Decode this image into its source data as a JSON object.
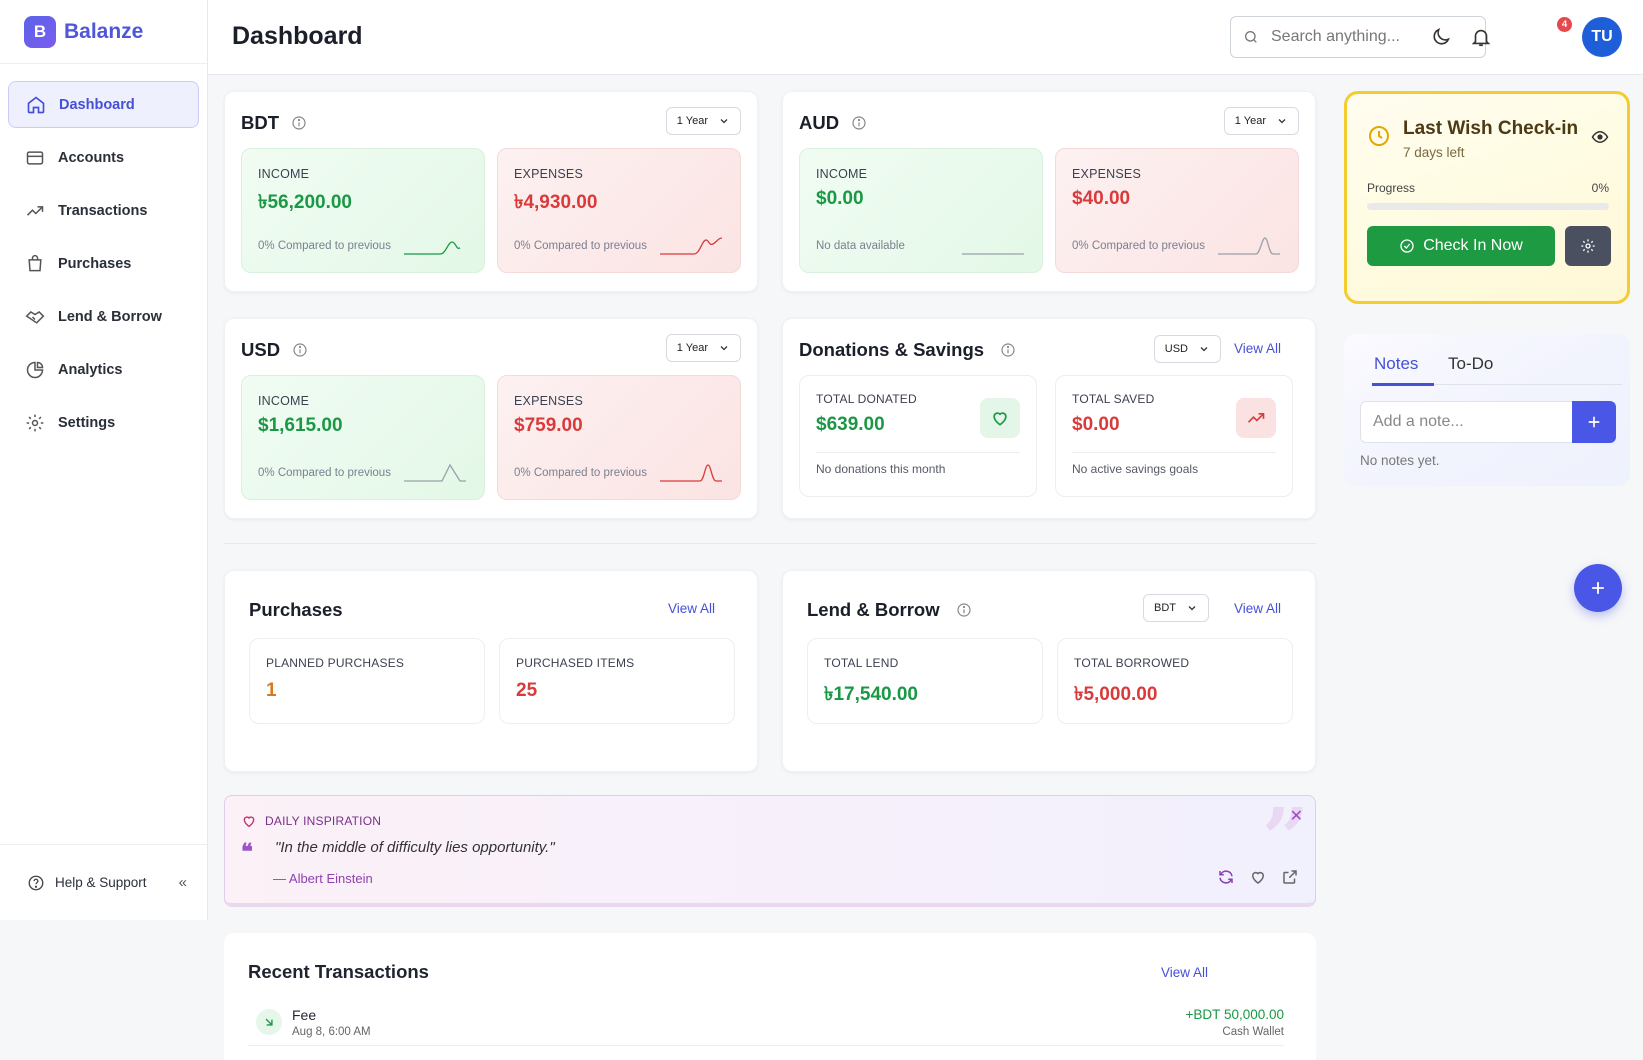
{
  "brand": {
    "logo_letter": "B",
    "name": "Balanze"
  },
  "sidebar": {
    "items": [
      {
        "label": "Dashboard",
        "icon": "home-icon",
        "active": true
      },
      {
        "label": "Accounts",
        "icon": "credit-card-icon"
      },
      {
        "label": "Transactions",
        "icon": "trending-up-icon"
      },
      {
        "label": "Purchases",
        "icon": "shopping-bag-icon"
      },
      {
        "label": "Lend & Borrow",
        "icon": "handshake-icon"
      },
      {
        "label": "Analytics",
        "icon": "pie-chart-icon"
      },
      {
        "label": "Settings",
        "icon": "gear-icon"
      }
    ],
    "help_label": "Help & Support",
    "collapse_label": "«"
  },
  "header": {
    "title": "Dashboard",
    "search_placeholder": "Search anything...",
    "notification_count": "4",
    "avatar_initials": "TU"
  },
  "currency_cards": {
    "bdt": {
      "title": "BDT",
      "period": "1 Year",
      "income": {
        "label": "INCOME",
        "value": "৳56,200.00",
        "foot": "0% Compared to previous"
      },
      "expenses": {
        "label": "EXPENSES",
        "value": "৳4,930.00",
        "foot": "0% Compared to previous"
      }
    },
    "aud": {
      "title": "AUD",
      "period": "1 Year",
      "income": {
        "label": "INCOME",
        "value": "$0.00",
        "foot": "No data available"
      },
      "expenses": {
        "label": "EXPENSES",
        "value": "$40.00",
        "foot": "0% Compared to previous"
      }
    },
    "usd": {
      "title": "USD",
      "period": "1 Year",
      "income": {
        "label": "INCOME",
        "value": "$1,615.00",
        "foot": "0% Compared to previous"
      },
      "expenses": {
        "label": "EXPENSES",
        "value": "$759.00",
        "foot": "0% Compared to previous"
      }
    }
  },
  "donations": {
    "title": "Donations & Savings",
    "currency": "USD",
    "view_all": "View All",
    "donated": {
      "label": "TOTAL DONATED",
      "value": "$639.00",
      "foot": "No donations this month"
    },
    "saved": {
      "label": "TOTAL SAVED",
      "value": "$0.00",
      "foot": "No active savings goals"
    }
  },
  "purchases": {
    "title": "Purchases",
    "view_all": "View All",
    "planned": {
      "label": "PLANNED PURCHASES",
      "value": "1"
    },
    "purchased": {
      "label": "PURCHASED ITEMS",
      "value": "25"
    }
  },
  "lend_borrow": {
    "title": "Lend & Borrow",
    "currency": "BDT",
    "view_all": "View All",
    "lend": {
      "label": "TOTAL LEND",
      "value": "৳17,540.00"
    },
    "borrowed": {
      "label": "TOTAL BORROWED",
      "value": "৳5,000.00"
    }
  },
  "checkin": {
    "title": "Last Wish Check-in",
    "subtitle": "7 days left",
    "progress_label": "Progress",
    "progress_text": "0%",
    "progress_value": 0,
    "button_label": "Check In Now"
  },
  "notes": {
    "tabs": [
      "Notes",
      "To-Do"
    ],
    "input_placeholder": "Add a note...",
    "empty_text": "No notes yet."
  },
  "inspiration": {
    "heading": "DAILY INSPIRATION",
    "quote": "\"In the middle of difficulty lies opportunity.\"",
    "author": "— Albert Einstein"
  },
  "recent": {
    "title": "Recent Transactions",
    "view_all": "View All",
    "items": [
      {
        "name": "Fee",
        "date": "Aug 8, 6:00 AM",
        "amount": "+BDT 50,000.00",
        "wallet": "Cash Wallet"
      }
    ]
  },
  "colors": {
    "accent": "#4550d6",
    "income_green": "#1b9845",
    "expense_red": "#d93b3b",
    "checkin_border": "#f3cc2f"
  }
}
